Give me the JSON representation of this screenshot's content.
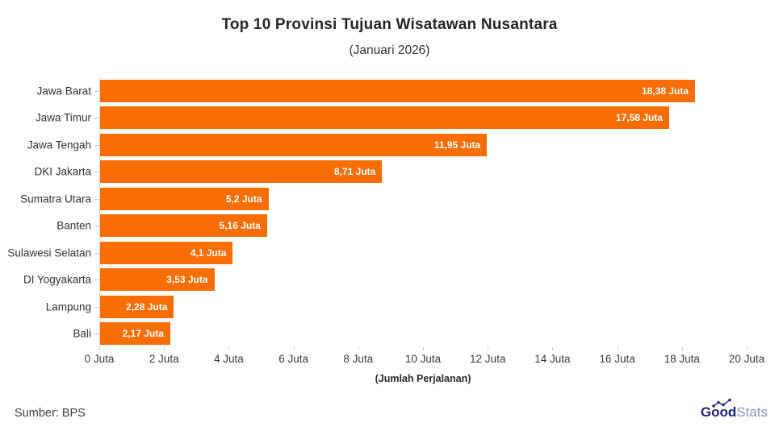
{
  "header": {
    "title": "Top 10 Provinsi Tujuan Wisatawan Nusantara",
    "subtitle": "(Januari 2026)"
  },
  "chart_data": {
    "type": "bar",
    "orientation": "horizontal",
    "title": "Top 10 Provinsi Tujuan Wisatawan Nusantara",
    "subtitle": "(Januari 2026)",
    "categories": [
      "Jawa Barat",
      "Jawa Timur",
      "Jawa Tengah",
      "DKI Jakarta",
      "Sumatra Utara",
      "Banten",
      "Sulawesi Selatan",
      "DI Yogyakarta",
      "Lampung",
      "Bali"
    ],
    "values": [
      18.38,
      17.58,
      11.95,
      8.71,
      5.2,
      5.16,
      4.1,
      3.53,
      2.28,
      2.17
    ],
    "value_labels": [
      "18,38 Juta",
      "17,58 Juta",
      "11,95 Juta",
      "8,71 Juta",
      "5,2 Juta",
      "5,16 Juta",
      "4,1 Juta",
      "3,53 Juta",
      "2,28 Juta",
      "2,17 Juta"
    ],
    "xlabel": "(Jumlah Perjalanan)",
    "ylabel": "",
    "xlim": [
      0,
      20
    ],
    "xticks": [
      "0 Juta",
      "2 Juta",
      "4 Juta",
      "6 Juta",
      "8 Juta",
      "10 Juta",
      "12 Juta",
      "14 Juta",
      "16 Juta",
      "18 Juta",
      "20 Juta"
    ],
    "grid": false,
    "legend": "none",
    "bar_color": "#F86E05",
    "value_label_color": "#FFFFFF"
  },
  "footer": {
    "source": "Sumber: BPS",
    "logo": {
      "bold": "Good",
      "light": "Stats"
    }
  },
  "colors": {
    "bar": "#F86E05",
    "title_text": "#262626",
    "axis_text": "#3A3A3A",
    "spine": "#DCDCDC",
    "logo_bold": "#1E2277",
    "logo_light": "#8D90C0"
  }
}
